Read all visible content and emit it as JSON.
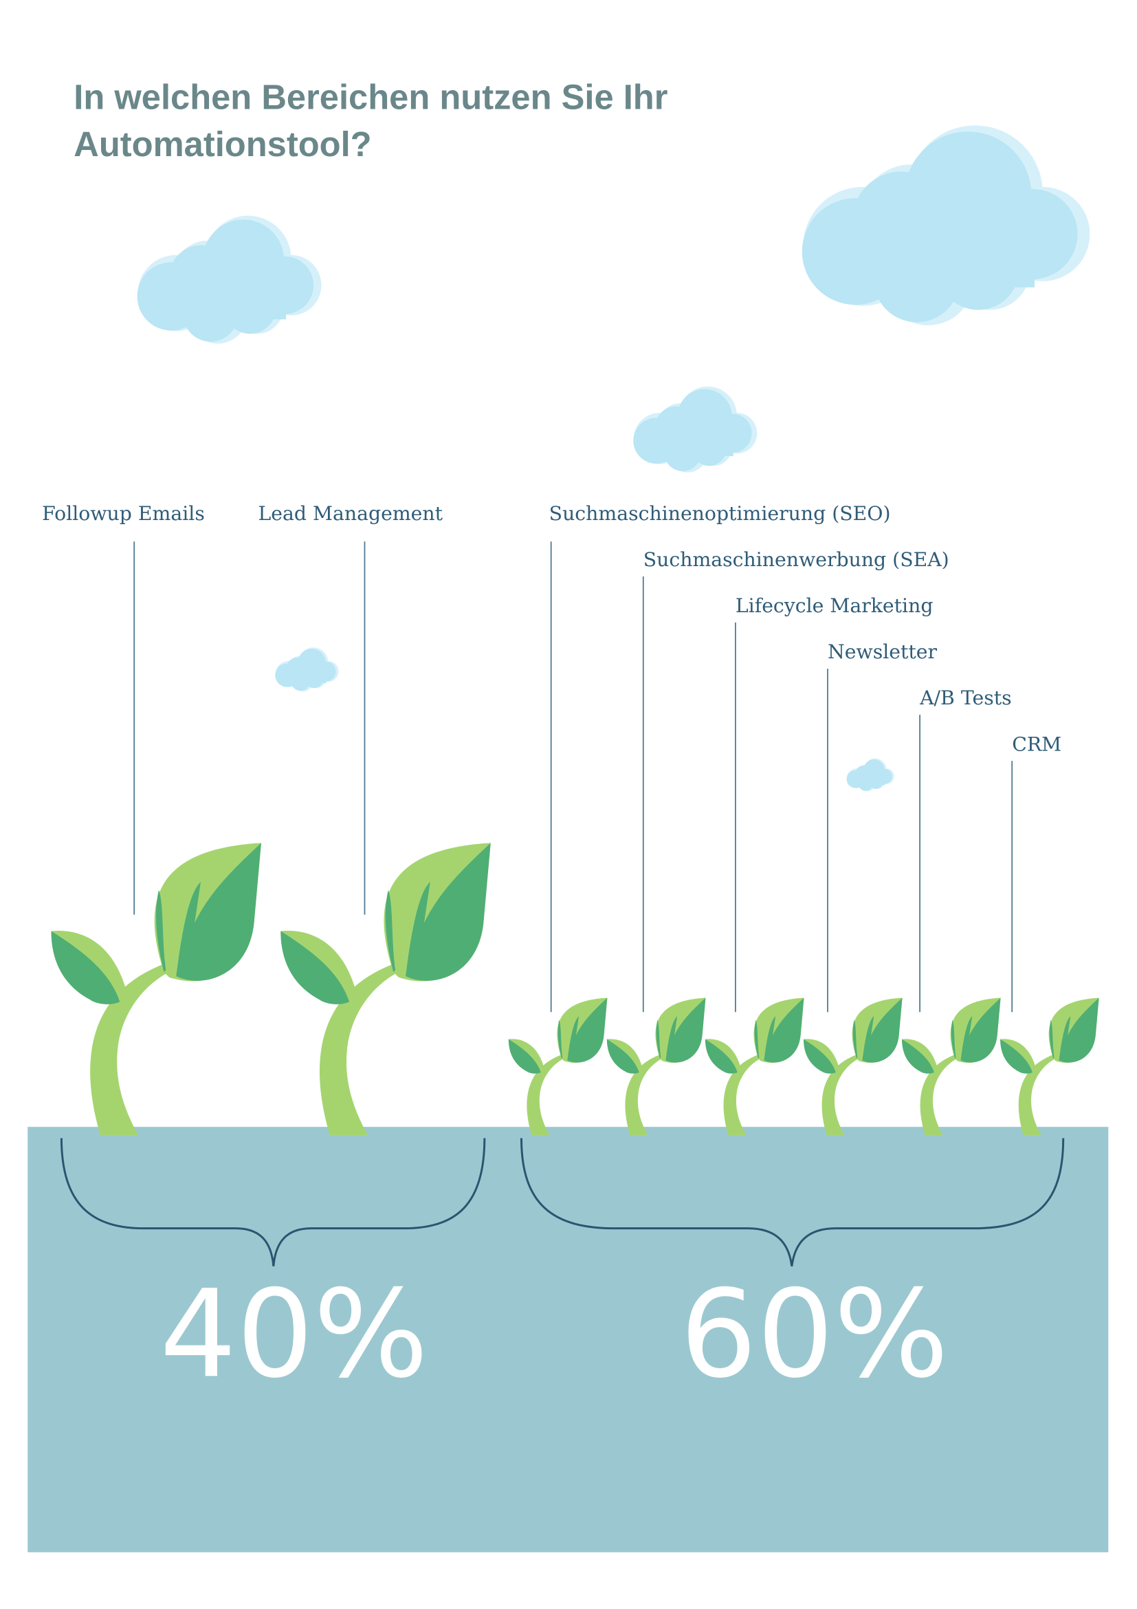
{
  "title": {
    "line1": "In welchen Bereichen nutzen Sie Ihr",
    "line2": "Automationstool?"
  },
  "groups": [
    {
      "percent": "40%",
      "labels": [
        "Followup Emails",
        "Lead Management"
      ]
    },
    {
      "percent": "60%",
      "labels": [
        "Suchmaschinenoptimierung (SEO)",
        "Suchmaschinenwerbung (SEA)",
        "Lifecycle Marketing",
        "Newsletter",
        "A/B Tests",
        "CRM"
      ]
    }
  ],
  "colors": {
    "title": "#6a878a",
    "label": "#2f5c78",
    "ground": "#9bc8d0",
    "leaf_dark": "#4fae74",
    "leaf_light": "#a5d46f",
    "cloud": "#b9e5f4",
    "cloud_back": "#d6f0fa"
  }
}
